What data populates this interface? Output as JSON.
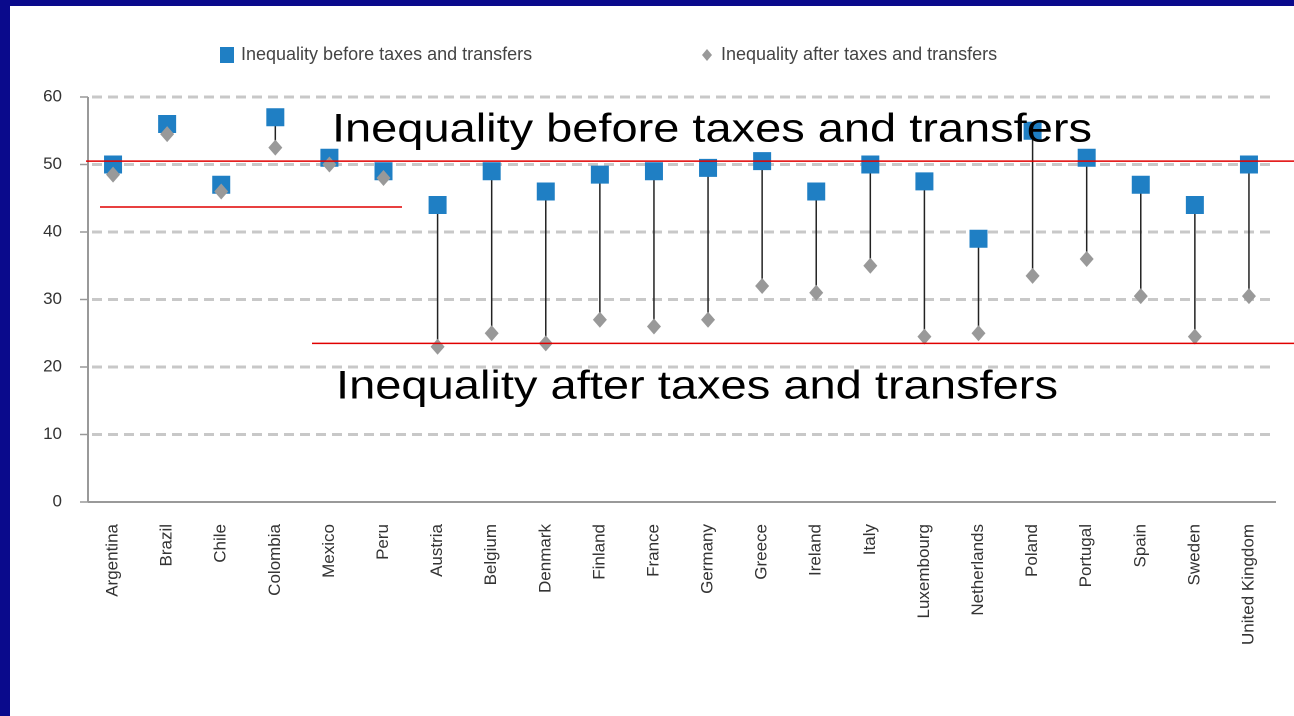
{
  "chart_data": {
    "type": "dot",
    "categories": [
      "Argentina",
      "Brazil",
      "Chile",
      "Colombia",
      "Mexico",
      "Peru",
      "Austria",
      "Belgium",
      "Denmark",
      "Finland",
      "France",
      "Germany",
      "Greece",
      "Ireland",
      "Italy",
      "Luxembourg",
      "Netherlands",
      "Poland",
      "Portugal",
      "Spain",
      "Sweden",
      "United Kingdom"
    ],
    "series": [
      {
        "name": "Inequality before taxes and transfers",
        "color": "#1f7fc4",
        "marker": "square",
        "values": [
          50,
          56,
          47,
          57,
          51,
          49,
          44,
          49,
          46,
          48.5,
          49,
          49.5,
          50.5,
          46,
          50,
          47.5,
          39,
          55,
          51,
          47,
          44,
          50
        ]
      },
      {
        "name": "Inequality after taxes and transfers",
        "color": "#999999",
        "marker": "diamond",
        "values": [
          48.5,
          54.5,
          46,
          52.5,
          50,
          48,
          23,
          25,
          23.5,
          27,
          26,
          27,
          32,
          31,
          35,
          24.5,
          25,
          33.5,
          36,
          30.5,
          24.5,
          30.5
        ]
      }
    ],
    "ylim": [
      0,
      60
    ],
    "yticks": [
      0,
      10,
      20,
      30,
      40,
      50,
      60
    ],
    "grid": true,
    "reference_lines": [
      50.5,
      43.7,
      23.5
    ],
    "reference_color": "#e00000",
    "annotations": [
      "Inequality before taxes and transfers",
      "Inequality after taxes and transfers"
    ]
  }
}
